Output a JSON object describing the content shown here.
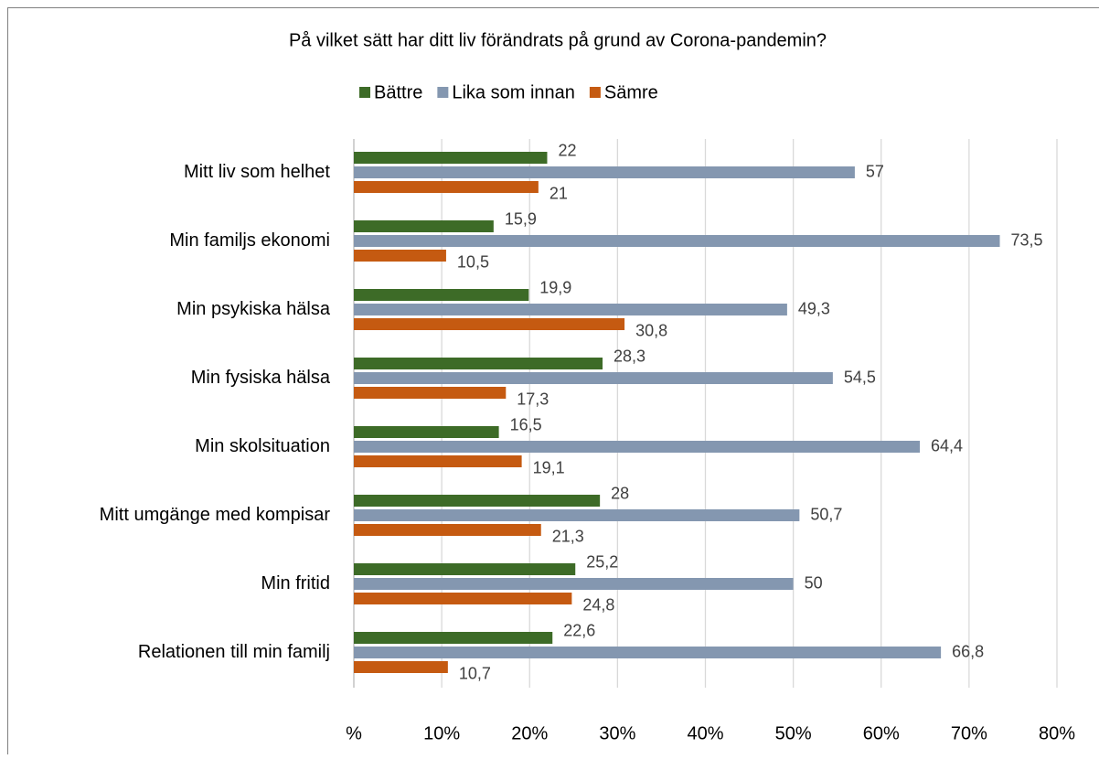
{
  "chart_data": {
    "type": "hbar",
    "title": "På vilket sätt har ditt liv förändrats på grund av Corona-pandemin?",
    "categories": [
      "Mitt liv som helhet",
      "Min familjs ekonomi",
      "Min psykiska hälsa",
      "Min fysiska hälsa",
      "Min skolsituation",
      "Mitt umgänge med kompisar",
      "Min fritid",
      "Relationen till min familj"
    ],
    "series": [
      {
        "name": "Bättre",
        "color": "#3d6b27",
        "values": [
          22,
          15.9,
          19.9,
          28.3,
          16.5,
          28,
          25.2,
          22.6
        ],
        "value_labels": [
          "22",
          "15,9",
          "19,9",
          "28,3",
          "16,5",
          "28",
          "25,2",
          "22,6"
        ]
      },
      {
        "name": "Lika som innan",
        "color": "#8497b0",
        "values": [
          57,
          73.5,
          49.3,
          54.5,
          64.4,
          50.7,
          50,
          66.8
        ],
        "value_labels": [
          "57",
          "73,5",
          "49,3",
          "54,5",
          "64,4",
          "50,7",
          "50",
          "66,8"
        ]
      },
      {
        "name": "Sämre",
        "color": "#c55a11",
        "values": [
          21,
          10.5,
          30.8,
          17.3,
          19.1,
          21.3,
          24.8,
          10.7
        ],
        "value_labels": [
          "21",
          "10,5",
          "30,8",
          "17,3",
          "19,1",
          "21,3",
          "24,8",
          "10,7"
        ]
      }
    ],
    "xlim": [
      0,
      80
    ],
    "xticks": [
      {
        "value": 0,
        "label": "%"
      },
      {
        "value": 10,
        "label": "10%"
      },
      {
        "value": 20,
        "label": "20%"
      },
      {
        "value": 30,
        "label": "30%"
      },
      {
        "value": 40,
        "label": "40%"
      },
      {
        "value": 50,
        "label": "50%"
      },
      {
        "value": 60,
        "label": "60%"
      },
      {
        "value": 70,
        "label": "70%"
      },
      {
        "value": 80,
        "label": "80%"
      }
    ],
    "grid": true,
    "legend": "top"
  }
}
